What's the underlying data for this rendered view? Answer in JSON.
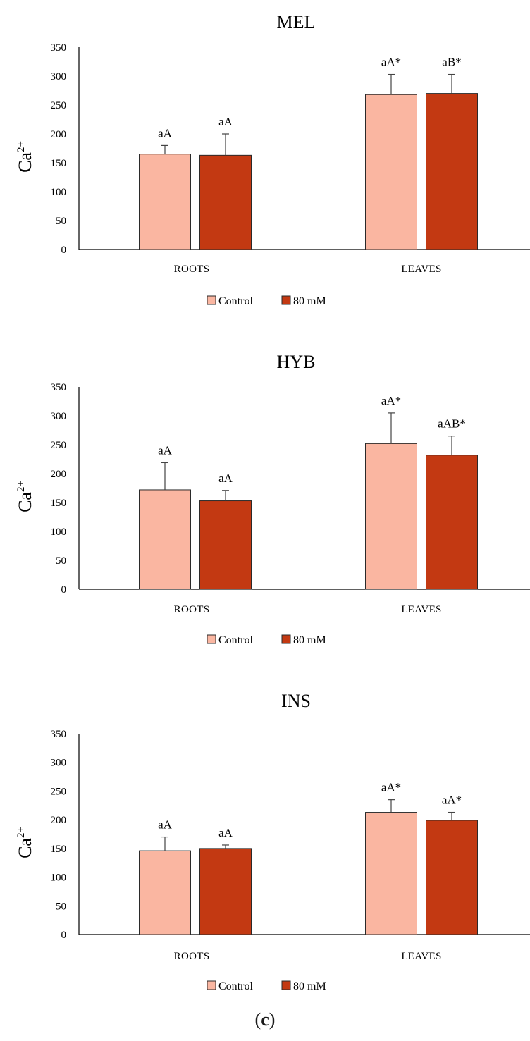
{
  "chart_data": [
    {
      "type": "bar",
      "title": "MEL",
      "ylabel": "Ca",
      "ylabel_sup": "2+",
      "ylim": [
        0,
        350
      ],
      "yticks": [
        0,
        50,
        100,
        150,
        200,
        250,
        300,
        350
      ],
      "categories": [
        "ROOTS",
        "LEAVES"
      ],
      "series": [
        {
          "name": "Control",
          "color": "#FAB6A1",
          "values": [
            165,
            268
          ],
          "errors": [
            15,
            35
          ],
          "labels": [
            "aA",
            "aA*"
          ]
        },
        {
          "name": "80 mM",
          "color": "#C33912",
          "values": [
            163,
            270
          ],
          "errors": [
            37,
            33
          ],
          "labels": [
            "aA",
            "aB*"
          ]
        }
      ],
      "legend": "bottom"
    },
    {
      "type": "bar",
      "title": "HYB",
      "ylabel": "Ca",
      "ylabel_sup": "2+",
      "ylim": [
        0,
        350
      ],
      "yticks": [
        0,
        50,
        100,
        150,
        200,
        250,
        300,
        350
      ],
      "categories": [
        "ROOTS",
        "LEAVES"
      ],
      "series": [
        {
          "name": "Control",
          "color": "#FAB6A1",
          "values": [
            172,
            252
          ],
          "errors": [
            47,
            53
          ],
          "labels": [
            "aA",
            "aA*"
          ]
        },
        {
          "name": "80 mM",
          "color": "#C33912",
          "values": [
            153,
            232
          ],
          "errors": [
            18,
            33
          ],
          "labels": [
            "aA",
            "aAB*"
          ]
        }
      ],
      "legend": "bottom"
    },
    {
      "type": "bar",
      "title": "INS",
      "ylabel": "Ca",
      "ylabel_sup": "2+",
      "ylim": [
        0,
        350
      ],
      "yticks": [
        0,
        50,
        100,
        150,
        200,
        250,
        300,
        350
      ],
      "categories": [
        "ROOTS",
        "LEAVES"
      ],
      "series": [
        {
          "name": "Control",
          "color": "#FAB6A1",
          "values": [
            146,
            213
          ],
          "errors": [
            24,
            22
          ],
          "labels": [
            "aA",
            "aA*"
          ]
        },
        {
          "name": "80 mM",
          "color": "#C33912",
          "values": [
            150,
            199
          ],
          "errors": [
            6,
            14
          ],
          "labels": [
            "aA",
            "aA*"
          ]
        }
      ],
      "legend": "bottom"
    }
  ],
  "panel_label": "c"
}
